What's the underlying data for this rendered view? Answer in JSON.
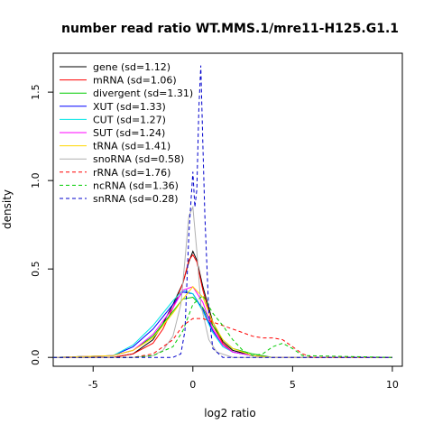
{
  "chart_data": {
    "type": "line",
    "title": "number read ratio WT.MMS.1/mre11-H125.G1.1",
    "xlabel": "log2 ratio",
    "ylabel": "density",
    "xlim": [
      -7,
      10.5
    ],
    "ylim": [
      -0.05,
      1.72
    ],
    "x_ticks": [
      -5,
      0,
      5,
      10
    ],
    "y_ticks": [
      0.0,
      0.5,
      1.0,
      1.5
    ],
    "x_tick_labels": [
      "-5",
      "0",
      "5",
      "10"
    ],
    "y_tick_labels": [
      "0.0",
      "0.5",
      "1.0",
      "1.5"
    ],
    "grid": false,
    "legend_position": "top-left",
    "series": [
      {
        "name": "gene (sd=1.12)",
        "color": "#000000",
        "dash": "solid",
        "x": [
          -7,
          -4,
          -3,
          -2,
          -1.5,
          -1,
          -0.5,
          -0.2,
          0,
          0.2,
          0.5,
          1,
          1.5,
          2,
          3,
          4,
          10
        ],
        "y": [
          0,
          0,
          0.02,
          0.1,
          0.19,
          0.3,
          0.42,
          0.54,
          0.6,
          0.55,
          0.4,
          0.2,
          0.09,
          0.04,
          0.01,
          0,
          0
        ]
      },
      {
        "name": "mRNA (sd=1.06)",
        "color": "#ff0000",
        "dash": "solid",
        "x": [
          -7,
          -4,
          -3,
          -2,
          -1.5,
          -1,
          -0.5,
          -0.2,
          0,
          0.2,
          0.5,
          1,
          1.5,
          2,
          3,
          4,
          10
        ],
        "y": [
          0,
          0,
          0.02,
          0.08,
          0.16,
          0.28,
          0.42,
          0.55,
          0.58,
          0.54,
          0.38,
          0.18,
          0.08,
          0.03,
          0.01,
          0,
          0
        ]
      },
      {
        "name": "divergent (sd=1.31)",
        "color": "#00cc00",
        "dash": "solid",
        "x": [
          -7,
          -4,
          -3,
          -2,
          -1,
          -0.5,
          0,
          0.5,
          1,
          1.5,
          2,
          3,
          4,
          10
        ],
        "y": [
          0,
          0.01,
          0.04,
          0.12,
          0.26,
          0.33,
          0.34,
          0.28,
          0.18,
          0.1,
          0.05,
          0.02,
          0,
          0
        ]
      },
      {
        "name": "XUT (sd=1.33)",
        "color": "#0000ff",
        "dash": "solid",
        "x": [
          -7,
          -4,
          -3,
          -2,
          -1,
          -0.5,
          0,
          0.5,
          1,
          1.5,
          2,
          3,
          4,
          10
        ],
        "y": [
          0,
          0.01,
          0.06,
          0.16,
          0.3,
          0.37,
          0.36,
          0.27,
          0.15,
          0.07,
          0.03,
          0.01,
          0,
          0
        ]
      },
      {
        "name": "CUT (sd=1.27)",
        "color": "#00e5e5",
        "dash": "solid",
        "x": [
          -7,
          -4,
          -3,
          -2,
          -1,
          -0.5,
          0,
          0.5,
          1,
          1.5,
          2,
          3,
          4,
          10
        ],
        "y": [
          0,
          0.01,
          0.07,
          0.18,
          0.32,
          0.38,
          0.36,
          0.26,
          0.14,
          0.06,
          0.03,
          0.01,
          0,
          0
        ]
      },
      {
        "name": "SUT (sd=1.24)",
        "color": "#ff00ff",
        "dash": "solid",
        "x": [
          -7,
          -4,
          -3,
          -2,
          -1,
          -0.5,
          0,
          0.5,
          1,
          1.5,
          2,
          3,
          4,
          10
        ],
        "y": [
          0,
          0.01,
          0.04,
          0.13,
          0.28,
          0.38,
          0.4,
          0.31,
          0.16,
          0.07,
          0.03,
          0.01,
          0,
          0
        ]
      },
      {
        "name": "tRNA (sd=1.41)",
        "color": "#ffd700",
        "dash": "solid",
        "x": [
          -7,
          -4,
          -3,
          -2,
          -1,
          -0.5,
          0,
          0.5,
          1,
          1.5,
          2,
          3,
          4,
          10
        ],
        "y": [
          0,
          0.01,
          0.04,
          0.11,
          0.25,
          0.33,
          0.4,
          0.34,
          0.2,
          0.1,
          0.05,
          0.01,
          0,
          0
        ]
      },
      {
        "name": "snoRNA (sd=0.58)",
        "color": "#b0b0b0",
        "dash": "solid",
        "x": [
          -7,
          -3,
          -2,
          -1.5,
          -1,
          -0.6,
          -0.4,
          -0.2,
          0,
          0.2,
          0.4,
          0.8,
          1.2,
          2,
          10
        ],
        "y": [
          0,
          0,
          0.01,
          0.04,
          0.12,
          0.3,
          0.55,
          0.8,
          0.85,
          0.6,
          0.3,
          0.1,
          0.03,
          0,
          0
        ]
      },
      {
        "name": "rRNA (sd=1.76)",
        "color": "#ff0000",
        "dash": "dashed",
        "x": [
          -7,
          -3,
          -2,
          -1,
          -0.5,
          0,
          0.5,
          1,
          1.5,
          2,
          3,
          3.5,
          4,
          4.5,
          5,
          5.5,
          6,
          10
        ],
        "y": [
          0,
          0,
          0.02,
          0.1,
          0.18,
          0.22,
          0.22,
          0.2,
          0.18,
          0.16,
          0.12,
          0.11,
          0.11,
          0.1,
          0.06,
          0.02,
          0,
          0
        ]
      },
      {
        "name": "ncRNA (sd=1.36)",
        "color": "#00cc00",
        "dash": "dashed",
        "x": [
          -7,
          -3,
          -2,
          -1,
          -0.5,
          0,
          0.5,
          1,
          1.5,
          2,
          2.5,
          3,
          3.5,
          4,
          4.5,
          5,
          5.5,
          10
        ],
        "y": [
          0,
          0,
          0.01,
          0.06,
          0.15,
          0.3,
          0.35,
          0.25,
          0.18,
          0.1,
          0.04,
          0.01,
          0.02,
          0.06,
          0.08,
          0.05,
          0.01,
          0
        ]
      },
      {
        "name": "snRNA (sd=0.28)",
        "color": "#0000cc",
        "dash": "dashed",
        "x": [
          -7,
          -1,
          -0.6,
          -0.4,
          -0.2,
          0,
          0.1,
          0.2,
          0.3,
          0.4,
          0.5,
          0.6,
          0.8,
          1,
          1.5,
          10
        ],
        "y": [
          0,
          0,
          0.02,
          0.15,
          0.7,
          1.05,
          0.85,
          0.95,
          1.4,
          1.65,
          1.2,
          0.8,
          0.25,
          0.05,
          0,
          0
        ]
      }
    ]
  }
}
